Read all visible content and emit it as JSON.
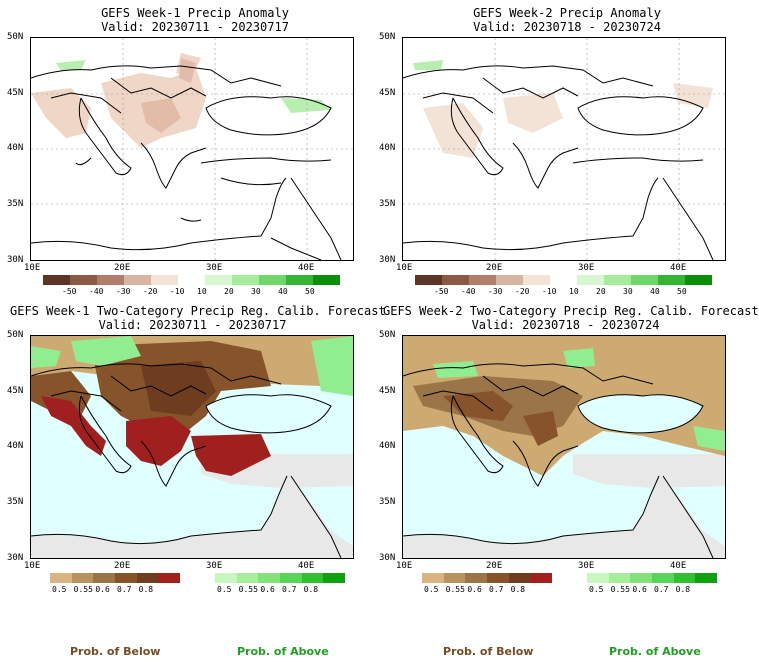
{
  "panels": [
    {
      "title": "GEFS Week-1 Precip Anomaly",
      "valid": "Valid: 20230711 - 20230717"
    },
    {
      "title": "GEFS Week-2 Precip Anomaly",
      "valid": "Valid: 20230718 - 20230724"
    },
    {
      "title": "GEFS Week-1 Two-Category Precip Reg. Calib. Forecast",
      "valid": "Valid: 20230711 - 20230717"
    },
    {
      "title": "GEFS Week-2 Two-Category Precip Reg. Calib. Forecast",
      "valid": "Valid: 20230718 - 20230724"
    }
  ],
  "lat_labels": [
    "50N",
    "45N",
    "40N",
    "35N",
    "30N"
  ],
  "lon_labels": [
    "10E",
    "20E",
    "30E",
    "40E"
  ],
  "anomaly_scale": {
    "ticks": [
      "-50",
      "-40",
      "-30",
      "-20",
      "-10",
      "10",
      "20",
      "30",
      "40",
      "50"
    ],
    "colors": [
      "#5e3426",
      "#8a5a44",
      "#b07e6a",
      "#d7b5a3",
      "#f3e2d6",
      "#ffffff",
      "#d6f7cf",
      "#a6ee9b",
      "#6ed66a",
      "#34b534",
      "#0a8f0a"
    ]
  },
  "prob_below_scale": {
    "ticks": [
      "0.5",
      "0.55",
      "0.6",
      "0.7",
      "0.8"
    ],
    "colors": [
      "#d8b483",
      "#b8935f",
      "#9b7548",
      "#86532b",
      "#6e3d1f",
      "#a02020"
    ]
  },
  "prob_above_scale": {
    "ticks": [
      "0.5",
      "0.55",
      "0.6",
      "0.7",
      "0.8"
    ],
    "colors": [
      "#c8f7c0",
      "#a6ee9b",
      "#84e27c",
      "#5ad35a",
      "#2fbf2f",
      "#10a010"
    ]
  },
  "legend": {
    "below": "Prob. of Below",
    "above": "Prob. of Above"
  },
  "colors": {
    "sea": "#e0ffff",
    "land_gray": "#e8e8e8",
    "below_red": "#a02020",
    "brown_dark": "#7a4a25",
    "tan": "#cdaa72",
    "green": "#90ee90"
  }
}
